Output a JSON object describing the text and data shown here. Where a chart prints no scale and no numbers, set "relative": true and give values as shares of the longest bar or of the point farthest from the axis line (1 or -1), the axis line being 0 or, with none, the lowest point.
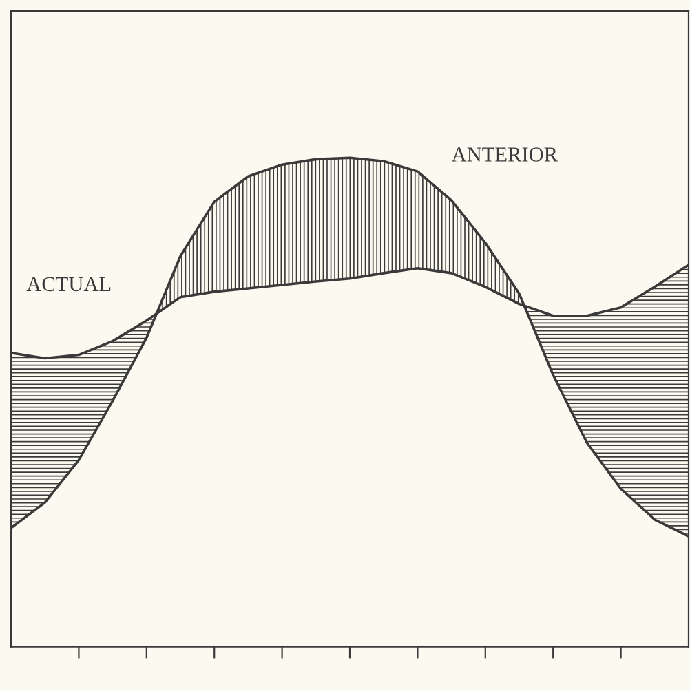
{
  "chart_data": {
    "type": "line",
    "relative": true,
    "legend": false,
    "grid": false,
    "marker": "none",
    "line_style": "solid",
    "categories": [
      null,
      null,
      null,
      null,
      null,
      null,
      null,
      null,
      null,
      null,
      null,
      null,
      null,
      null,
      null,
      null,
      null,
      null,
      null,
      null,
      null
    ],
    "series": [
      {
        "name": "ACTUAL",
        "color": "#3a3a3a",
        "values": [
          0.601,
          0.59,
          0.597,
          0.625,
          0.667,
          0.715,
          0.726,
          0.733,
          0.74,
          0.747,
          0.753,
          0.764,
          0.774,
          0.764,
          0.736,
          0.701,
          0.677,
          0.677,
          0.694,
          0.736,
          0.781
        ]
      },
      {
        "name": "ANTERIOR",
        "color": "#3a3a3a",
        "values": [
          0.243,
          0.295,
          0.382,
          0.503,
          0.632,
          0.799,
          0.91,
          0.962,
          0.986,
          0.997,
          1,
          0.993,
          0.972,
          0.913,
          0.826,
          0.722,
          0.556,
          0.417,
          0.323,
          0.26,
          0.226
        ]
      }
    ]
  }
}
